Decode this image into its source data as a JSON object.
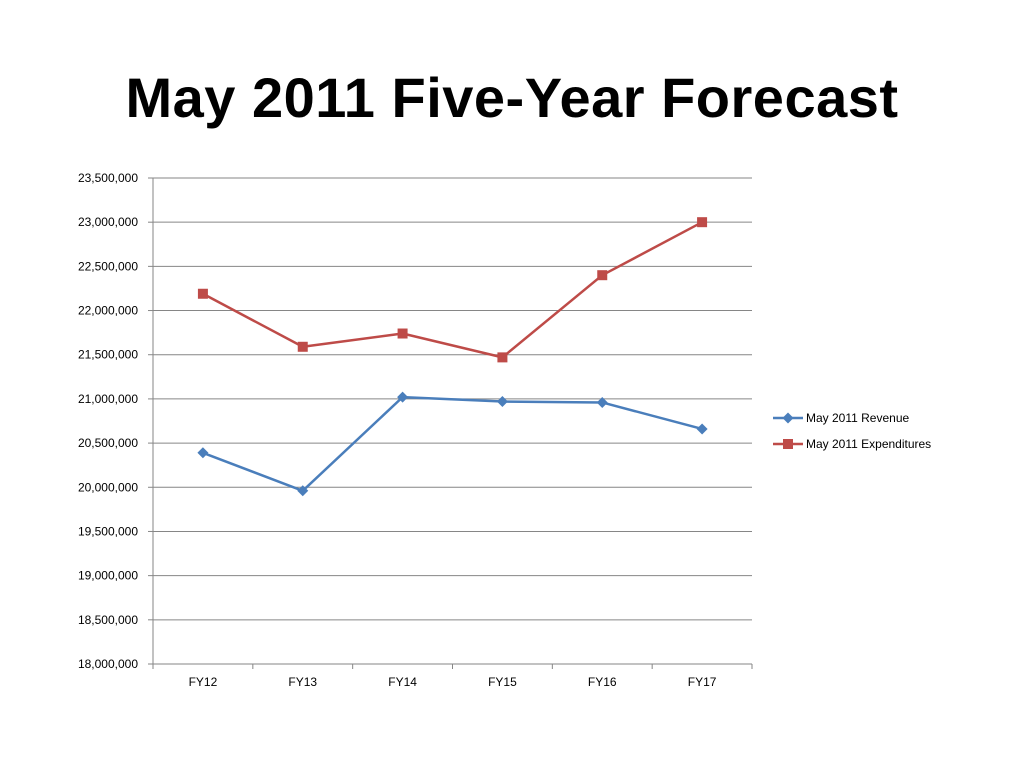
{
  "slide": {
    "title": "May 2011 Five-Year Forecast"
  },
  "chart_data": {
    "type": "line",
    "title": "",
    "xlabel": "",
    "ylabel": "",
    "categories": [
      "FY12",
      "FY13",
      "FY14",
      "FY15",
      "FY16",
      "FY17"
    ],
    "ylim": [
      18000000,
      23500000
    ],
    "ytick_step": 500000,
    "grid": true,
    "legend_position": "right",
    "series": [
      {
        "name": "May 2011 Revenue",
        "color": "#4a7ebb",
        "marker": "diamond",
        "values": [
          20390000,
          19960000,
          21020000,
          20970000,
          20960000,
          20660000
        ]
      },
      {
        "name": "May 2011 Expenditures",
        "color": "#be4b48",
        "marker": "square",
        "values": [
          22190000,
          21590000,
          21740000,
          21470000,
          22400000,
          23000000
        ]
      }
    ]
  }
}
